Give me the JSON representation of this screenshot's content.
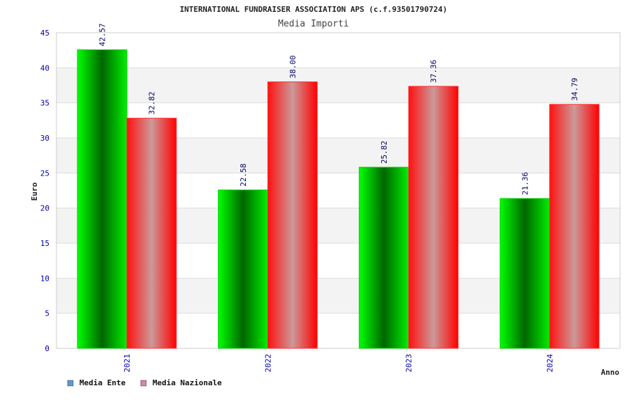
{
  "chart_data": {
    "type": "bar",
    "title": "INTERNATIONAL FUNDRAISER ASSOCIATION APS (c.f.93501790724)",
    "subtitle": "Media Importi",
    "xlabel": "Anno",
    "ylabel": "Euro",
    "categories": [
      "2021",
      "2022",
      "2023",
      "2024"
    ],
    "ylim": [
      0,
      45
    ],
    "yticks": [
      0,
      5,
      10,
      15,
      20,
      25,
      30,
      35,
      40,
      45
    ],
    "grid": true,
    "legend_position": "bottom-left",
    "series": [
      {
        "name": "Media Ente",
        "values": [
          42.57,
          22.58,
          25.82,
          21.36
        ],
        "labels": [
          "42.57",
          "22.58",
          "25.82",
          "21.36"
        ],
        "color": "#00cc00",
        "legend_color": "#5b9bd5"
      },
      {
        "name": "Media Nazionale",
        "values": [
          32.82,
          38.0,
          37.36,
          34.79
        ],
        "labels": [
          "32.82",
          "38.00",
          "37.36",
          "34.79"
        ],
        "color": "#ff1a1a",
        "legend_color": "#e07fb0"
      }
    ]
  }
}
